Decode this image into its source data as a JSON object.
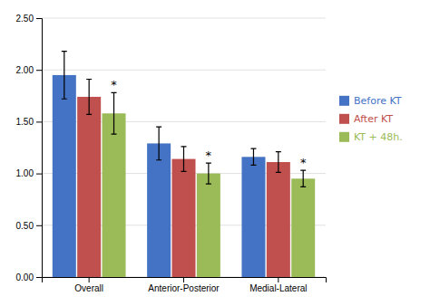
{
  "chart_data": {
    "type": "bar",
    "categories": [
      "Overall",
      "Anterior-Posterior",
      "Medial-Lateral"
    ],
    "series": [
      {
        "name": "Before KT",
        "color": "#4472C4",
        "values": [
          1.95,
          1.29,
          1.16
        ],
        "errors": [
          0.23,
          0.16,
          0.08
        ]
      },
      {
        "name": "After KT",
        "color": "#C0504D",
        "values": [
          1.74,
          1.14,
          1.11
        ],
        "errors": [
          0.17,
          0.12,
          0.1
        ]
      },
      {
        "name": "KT + 48h.",
        "color": "#9BBB59",
        "values": [
          1.58,
          1.0,
          0.95
        ],
        "errors": [
          0.2,
          0.1,
          0.08
        ]
      }
    ],
    "annotations": [
      {
        "text": "*",
        "category": "Overall",
        "series": "KT + 48h."
      },
      {
        "text": "*",
        "category": "Anterior-Posterior",
        "series": "KT + 48h."
      },
      {
        "text": "*",
        "category": "Medial-Lateral",
        "series": "KT + 48h."
      }
    ],
    "ylim": [
      0.0,
      2.5
    ],
    "yticks": [
      {
        "value": 0.0,
        "label": "0.00"
      },
      {
        "value": 0.5,
        "label": "0.50"
      },
      {
        "value": 1.0,
        "label": "1.00"
      },
      {
        "value": 1.5,
        "label": "1.50"
      },
      {
        "value": 2.0,
        "label": "2.00"
      },
      {
        "value": 2.5,
        "label": "2.50"
      }
    ],
    "grid": true,
    "legend": "right"
  }
}
